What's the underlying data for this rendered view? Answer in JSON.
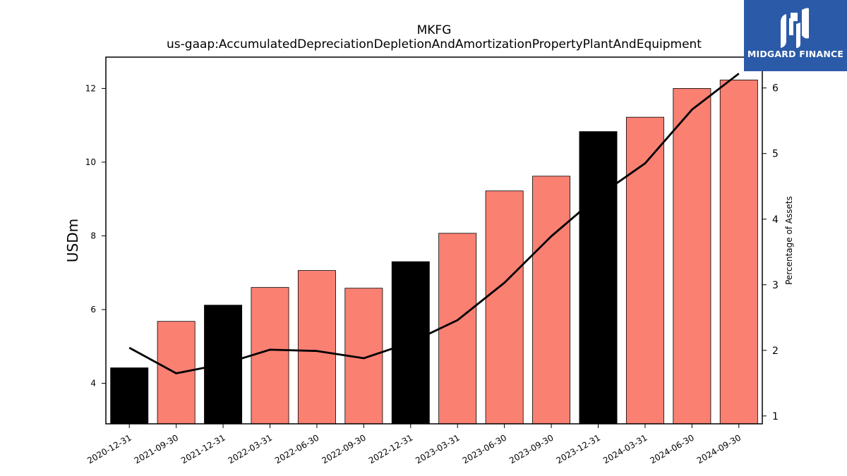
{
  "brand": {
    "name": "MIDGARD FINANCE",
    "background": "#2b5aa8",
    "icon": "midgard-logo-icon"
  },
  "chart_data": {
    "type": "bar",
    "title": "MKFG",
    "subtitle": "us-gaap:AccumulatedDepreciationDepletionAndAmortizationPropertyPlantAndEquipment",
    "ylabel": "USDm",
    "y2label": "Percentage of Assets",
    "ylim": [
      2.9,
      12.85
    ],
    "y2lim": [
      0.88,
      6.47
    ],
    "yticks": [
      4,
      6,
      8,
      10,
      12
    ],
    "y2ticks": [
      1,
      2,
      3,
      4,
      5,
      6
    ],
    "grid": false,
    "categories": [
      "2020-12-31",
      "2021-09-30",
      "2021-12-31",
      "2022-03-31",
      "2022-06-30",
      "2022-09-30",
      "2022-12-31",
      "2023-03-31",
      "2023-06-30",
      "2023-09-30",
      "2023-12-31",
      "2024-03-31",
      "2024-06-30",
      "2024-09-30"
    ],
    "series": [
      {
        "type": "bar",
        "axis": "left",
        "values": [
          4.42,
          5.68,
          6.12,
          6.6,
          7.06,
          6.58,
          7.3,
          8.07,
          9.22,
          9.62,
          10.83,
          11.22,
          12.0,
          12.23
        ],
        "colors": [
          "#000000",
          "#fa8072",
          "#000000",
          "#fa8072",
          "#fa8072",
          "#fa8072",
          "#000000",
          "#fa8072",
          "#fa8072",
          "#fa8072",
          "#000000",
          "#fa8072",
          "#fa8072",
          "#fa8072"
        ]
      },
      {
        "type": "line",
        "axis": "right",
        "color": "#000000",
        "values": [
          2.04,
          1.65,
          1.79,
          2.01,
          1.99,
          1.88,
          2.12,
          2.46,
          3.03,
          3.74,
          4.35,
          4.85,
          5.67,
          6.22
        ]
      }
    ]
  }
}
